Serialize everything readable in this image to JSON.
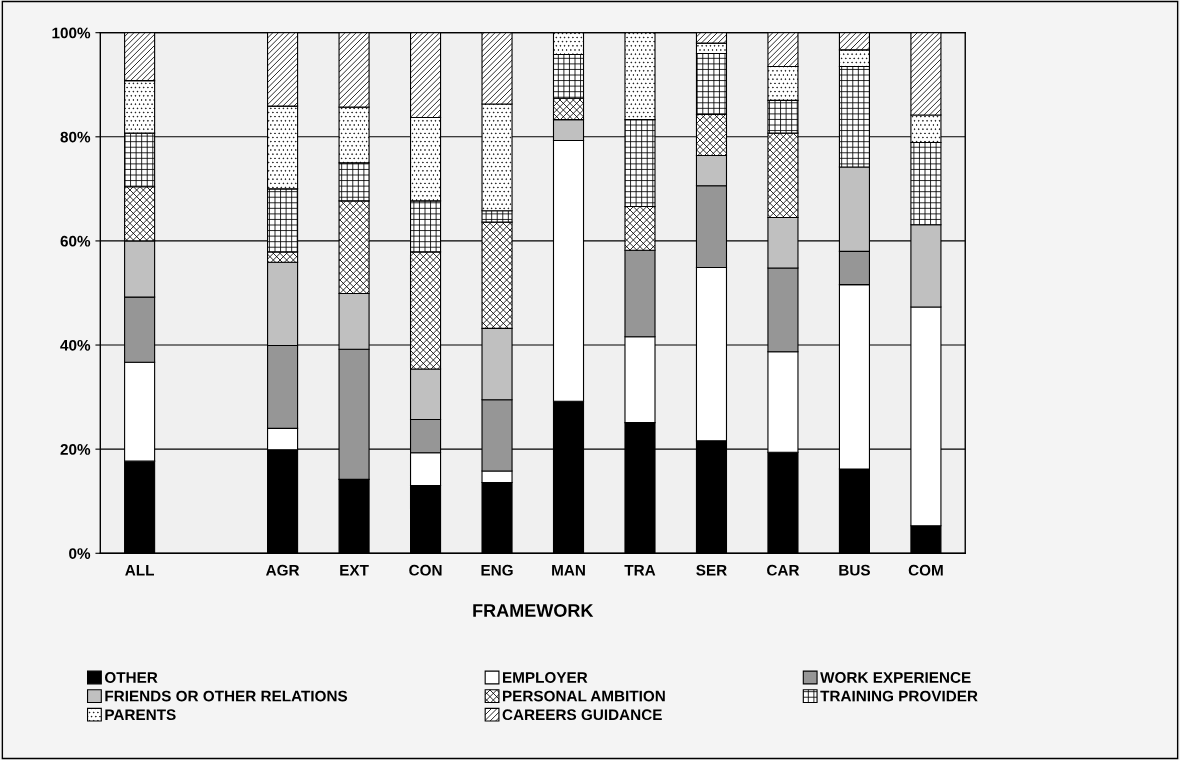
{
  "chart_data": {
    "type": "bar",
    "stacked": true,
    "xlabel": "FRAMEWORK",
    "categories": [
      "ALL",
      null,
      "AGR",
      "EXT",
      "CON",
      "ENG",
      "MAN",
      "TRA",
      "SER",
      "CAR",
      "BUS",
      "COM"
    ],
    "series": [
      {
        "name": "OTHER",
        "color": "#000000",
        "values": [
          17.7,
          null,
          19.9,
          14.2,
          13.0,
          13.6,
          29.2,
          25.1,
          21.6,
          19.4,
          16.2,
          5.3
        ]
      },
      {
        "name": "EMPLOYER",
        "color": "#ffffff",
        "values": [
          19.0,
          null,
          4.1,
          0,
          6.3,
          2.2,
          50.1,
          16.5,
          33.3,
          19.3,
          35.4,
          42.0
        ]
      },
      {
        "name": "WORK EXPERIENCE",
        "color": "#969696",
        "values": [
          12.5,
          null,
          15.9,
          25.0,
          6.4,
          13.7,
          0,
          16.6,
          15.7,
          16.1,
          6.4,
          0
        ]
      },
      {
        "name": "FRIENDS OR OTHER RELATIONS",
        "color": "#c0c0c0",
        "values": [
          10.8,
          null,
          16.0,
          10.7,
          9.7,
          13.7,
          4.0,
          0,
          5.8,
          9.7,
          16.2,
          15.8
        ]
      },
      {
        "name": "PERSONAL AMBITION",
        "color": "#000000",
        "values": [
          10.4,
          null,
          2.0,
          17.8,
          22.5,
          20.4,
          4.1,
          8.4,
          7.9,
          16.2,
          0,
          0
        ]
      },
      {
        "name": "TRAINING PROVIDER",
        "color": "#000000",
        "values": [
          10.3,
          null,
          12.1,
          7.3,
          9.8,
          2.2,
          8.4,
          16.7,
          11.7,
          6.3,
          19.3,
          15.8
        ]
      },
      {
        "name": "PARENTS",
        "color": "#000000",
        "values": [
          10.1,
          null,
          15.9,
          10.7,
          16.0,
          20.5,
          4.2,
          16.7,
          2.0,
          6.5,
          3.2,
          5.3
        ]
      },
      {
        "name": "CAREERS GUIDANCE",
        "color": "#000000",
        "values": [
          9.2,
          null,
          14.1,
          14.3,
          16.3,
          13.7,
          0,
          0,
          2.0,
          6.5,
          3.3,
          15.8
        ]
      }
    ],
    "ylim": [
      0,
      100
    ],
    "yticks": [
      {
        "value": 0,
        "label": "0%"
      },
      {
        "value": 20,
        "label": "20%"
      },
      {
        "value": 40,
        "label": "40%"
      },
      {
        "value": 60,
        "label": "60%"
      },
      {
        "value": 80,
        "label": "80%"
      },
      {
        "value": 100,
        "label": "100%"
      }
    ],
    "grid": "y",
    "legend": "bottom"
  }
}
